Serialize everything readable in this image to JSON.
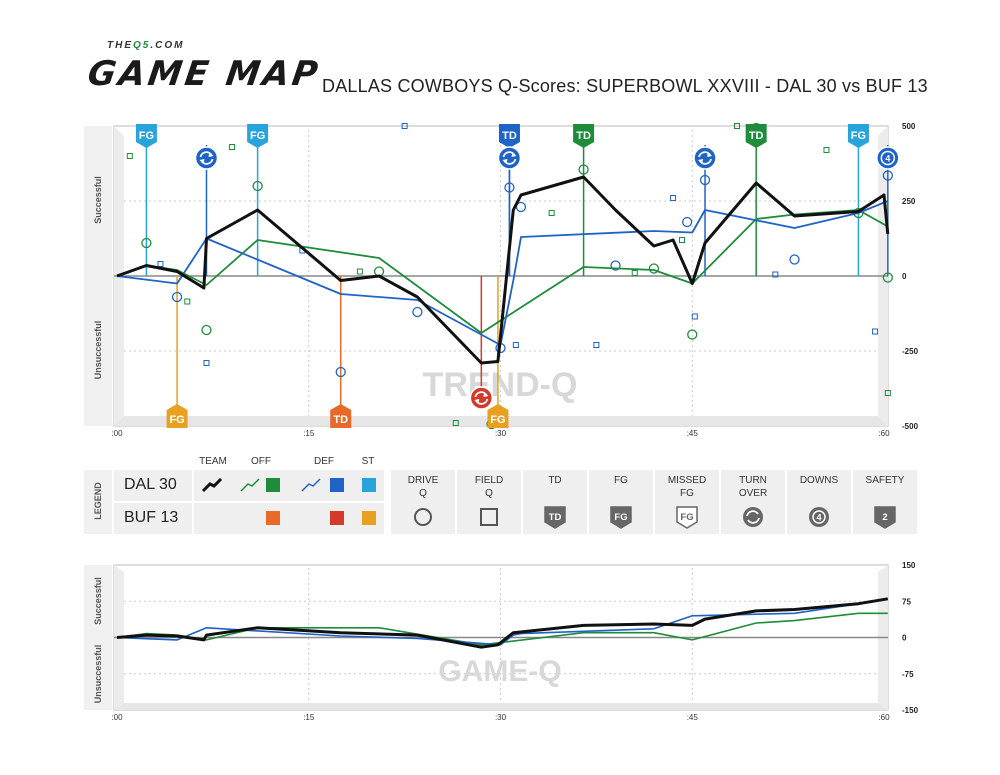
{
  "header": {
    "site_prefix": "THE",
    "site_brand": "Q5",
    "site_suffix": ".COM",
    "brand": "GAME MAP",
    "title": "DALLAS COWBOYS Q-Scores: SUPERBOWL XXVIII - DAL 30 vs BUF 13"
  },
  "colors": {
    "team": "#111111",
    "dal_off": "#1e8c3a",
    "dal_def": "#1f63c6",
    "dal_st": "#29a3dc",
    "buf_off": "#e86a2a",
    "buf_def": "#d43a2a",
    "buf_st": "#e8a020"
  },
  "trend": {
    "watermark": "TREND-Q",
    "side_labels": {
      "top": "Successful",
      "bottom": "Unsuccessful"
    },
    "yticks": [
      "500",
      "250",
      "0",
      "-250",
      "-500"
    ],
    "xticks": [
      ":00",
      ":15",
      ":30",
      ":45",
      ":60"
    ]
  },
  "game": {
    "watermark": "GAME-Q",
    "side_labels": {
      "top": "Successful",
      "bottom": "Unsuccessful"
    },
    "yticks": [
      "150",
      "75",
      "0",
      "-75",
      "-150"
    ],
    "xticks": [
      ":00",
      ":15",
      ":30",
      ":45",
      ":60"
    ]
  },
  "legend": {
    "side_label": "LEGEND",
    "headers": {
      "team": "TEAM",
      "off": "OFF",
      "def": "DEF",
      "st": "ST"
    },
    "teams": [
      "DAL 30",
      "BUF 13"
    ],
    "symbols": [
      {
        "line1": "DRIVE",
        "line2": "Q",
        "icon": "circle-icon"
      },
      {
        "line1": "FIELD",
        "line2": "Q",
        "icon": "square-icon"
      },
      {
        "line1": "TD",
        "line2": "",
        "icon": "td-badge-icon",
        "badge": "TD"
      },
      {
        "line1": "FG",
        "line2": "",
        "icon": "fg-badge-icon",
        "badge": "FG"
      },
      {
        "line1": "MISSED",
        "line2": "FG",
        "icon": "missed-fg-badge-icon",
        "badge": "FG"
      },
      {
        "line1": "TURN",
        "line2": "OVER",
        "icon": "turnover-icon"
      },
      {
        "line1": "DOWNS",
        "line2": "",
        "icon": "downs-icon",
        "badge": "4"
      },
      {
        "line1": "SAFETY",
        "line2": "",
        "icon": "safety-badge-icon",
        "badge": "2"
      }
    ]
  },
  "chart_data": [
    {
      "type": "line",
      "title": "TREND-Q",
      "x_label_ticks": [
        ":00",
        ":15",
        ":30",
        ":45",
        ":60"
      ],
      "xlim": [
        0,
        60
      ],
      "ylim": [
        -500,
        500
      ],
      "series": [
        {
          "name": "TEAM",
          "color": "#111111",
          "points": [
            [
              0,
              0
            ],
            [
              2.3,
              35
            ],
            [
              4.7,
              15
            ],
            [
              6.8,
              -40
            ],
            [
              7,
              125
            ],
            [
              11,
              220
            ],
            [
              17.5,
              -15
            ],
            [
              20.5,
              0
            ],
            [
              23.5,
              -70
            ],
            [
              28.5,
              -290
            ],
            [
              29.8,
              -285
            ],
            [
              31,
              220
            ],
            [
              31.6,
              270
            ],
            [
              36.5,
              330
            ],
            [
              39,
              220
            ],
            [
              42,
              100
            ],
            [
              43.5,
              120
            ],
            [
              45,
              -25
            ],
            [
              46,
              110
            ],
            [
              50,
              310
            ],
            [
              53,
              200
            ],
            [
              58,
              215
            ],
            [
              60,
              270
            ],
            [
              60.3,
              140
            ]
          ]
        },
        {
          "name": "OFF",
          "color": "#1e8c3a",
          "points": [
            [
              0,
              0
            ],
            [
              2.3,
              35
            ],
            [
              4.7,
              20
            ],
            [
              7,
              -30
            ],
            [
              11,
              120
            ],
            [
              20.5,
              60
            ],
            [
              28.5,
              -190
            ],
            [
              36.5,
              30
            ],
            [
              42,
              20
            ],
            [
              45,
              -25
            ],
            [
              50,
              190
            ],
            [
              53,
              205
            ],
            [
              58,
              220
            ],
            [
              60.3,
              165
            ]
          ]
        },
        {
          "name": "DEF",
          "color": "#1f63c6",
          "points": [
            [
              0,
              0
            ],
            [
              4.7,
              -25
            ],
            [
              7,
              125
            ],
            [
              17.5,
              -60
            ],
            [
              23.5,
              -80
            ],
            [
              30,
              -230
            ],
            [
              31,
              -15
            ],
            [
              31.6,
              130
            ],
            [
              42,
              150
            ],
            [
              45,
              145
            ],
            [
              46,
              220
            ],
            [
              53,
              160
            ],
            [
              58,
              210
            ],
            [
              60.3,
              250
            ]
          ]
        }
      ],
      "drive_points": [
        {
          "x": 2.3,
          "y": 110,
          "team": "off"
        },
        {
          "x": 4.7,
          "y": -70,
          "team": "def"
        },
        {
          "x": 7,
          "y": -180,
          "team": "off"
        },
        {
          "x": 11,
          "y": 300,
          "team": "off"
        },
        {
          "x": 17.5,
          "y": -320,
          "team": "def"
        },
        {
          "x": 20.5,
          "y": 15,
          "team": "off"
        },
        {
          "x": 23.5,
          "y": -120,
          "team": "def"
        },
        {
          "x": 29.3,
          "y": -500,
          "team": "off"
        },
        {
          "x": 30,
          "y": -240,
          "team": "def"
        },
        {
          "x": 30.7,
          "y": 295,
          "team": "def"
        },
        {
          "x": 31.6,
          "y": 230,
          "team": "def"
        },
        {
          "x": 36.5,
          "y": 355,
          "team": "off"
        },
        {
          "x": 39,
          "y": 35,
          "team": "def"
        },
        {
          "x": 42,
          "y": 25,
          "team": "off"
        },
        {
          "x": 44.6,
          "y": 180,
          "team": "def"
        },
        {
          "x": 45,
          "y": -195,
          "team": "off"
        },
        {
          "x": 46,
          "y": 320,
          "team": "def"
        },
        {
          "x": 50,
          "y": 505,
          "team": "off"
        },
        {
          "x": 53,
          "y": 55,
          "team": "def"
        },
        {
          "x": 58,
          "y": 210,
          "team": "off"
        },
        {
          "x": 60.3,
          "y": 335,
          "team": "def"
        },
        {
          "x": 60.3,
          "y": -5,
          "team": "off"
        }
      ],
      "field_points": [
        {
          "x": 1,
          "y": 400,
          "team": "off"
        },
        {
          "x": 3.4,
          "y": 40,
          "team": "def"
        },
        {
          "x": 5.5,
          "y": -85,
          "team": "off"
        },
        {
          "x": 7,
          "y": -290,
          "team": "def"
        },
        {
          "x": 9,
          "y": 430,
          "team": "off"
        },
        {
          "x": 14.5,
          "y": 85,
          "team": "def"
        },
        {
          "x": 19,
          "y": 15,
          "team": "off"
        },
        {
          "x": 22.5,
          "y": 500,
          "team": "def"
        },
        {
          "x": 26.5,
          "y": -500,
          "team": "off"
        },
        {
          "x": 31.2,
          "y": -230,
          "team": "def"
        },
        {
          "x": 34,
          "y": 210,
          "team": "off"
        },
        {
          "x": 37.5,
          "y": -230,
          "team": "def"
        },
        {
          "x": 40.5,
          "y": 10,
          "team": "off"
        },
        {
          "x": 43.5,
          "y": 260,
          "team": "def"
        },
        {
          "x": 44.2,
          "y": 120,
          "team": "off"
        },
        {
          "x": 45.2,
          "y": -135,
          "team": "def"
        },
        {
          "x": 48.5,
          "y": 500,
          "team": "off"
        },
        {
          "x": 51.5,
          "y": 5,
          "team": "def"
        },
        {
          "x": 55.5,
          "y": 420,
          "team": "off"
        },
        {
          "x": 59.3,
          "y": -185,
          "team": "def"
        },
        {
          "x": 60.3,
          "y": -390,
          "team": "off"
        }
      ],
      "events": [
        {
          "x": 2.3,
          "type": "FG",
          "team": "DAL",
          "side": "top",
          "color": "#29a3dc"
        },
        {
          "x": 7,
          "type": "TURNOVER",
          "team": "DAL",
          "side": "top",
          "color": "#1f63c6"
        },
        {
          "x": 11,
          "type": "FG",
          "team": "DAL",
          "side": "top",
          "color": "#29a3dc"
        },
        {
          "x": 30.7,
          "type": "TD",
          "team": "DAL",
          "side": "top",
          "color": "#1f63c6"
        },
        {
          "x": 30.7,
          "type": "TURNOVER",
          "team": "DAL",
          "side": "top",
          "color": "#1f63c6"
        },
        {
          "x": 36.5,
          "type": "TD",
          "team": "DAL",
          "side": "top",
          "color": "#1e8c3a"
        },
        {
          "x": 46,
          "type": "TURNOVER",
          "team": "DAL",
          "side": "top",
          "color": "#1f63c6"
        },
        {
          "x": 50,
          "type": "TD",
          "team": "DAL",
          "side": "top",
          "color": "#1e8c3a"
        },
        {
          "x": 58,
          "type": "FG",
          "team": "DAL",
          "side": "top",
          "color": "#29a3dc"
        },
        {
          "x": 60.3,
          "type": "DOWNS",
          "team": "DAL",
          "side": "top",
          "color": "#1f63c6",
          "badge": "4"
        },
        {
          "x": 4.7,
          "type": "FG",
          "team": "BUF",
          "side": "bottom",
          "color": "#e8a020"
        },
        {
          "x": 17.5,
          "type": "TD",
          "team": "BUF",
          "side": "bottom",
          "color": "#e86a2a"
        },
        {
          "x": 28.5,
          "type": "TURNOVER",
          "team": "BUF",
          "side": "bottom",
          "color": "#d43a2a"
        },
        {
          "x": 29.8,
          "type": "FG",
          "team": "BUF",
          "side": "bottom",
          "color": "#e8a020"
        }
      ]
    },
    {
      "type": "line",
      "title": "GAME-Q",
      "x_label_ticks": [
        ":00",
        ":15",
        ":30",
        ":45",
        ":60"
      ],
      "xlim": [
        0,
        60
      ],
      "ylim": [
        -150,
        150
      ],
      "series": [
        {
          "name": "TEAM",
          "color": "#111111",
          "points": [
            [
              0,
              0
            ],
            [
              2.3,
              5
            ],
            [
              4.7,
              3
            ],
            [
              6.8,
              -5
            ],
            [
              7,
              5
            ],
            [
              11,
              20
            ],
            [
              17.5,
              10
            ],
            [
              23.5,
              5
            ],
            [
              28.5,
              -20
            ],
            [
              29.8,
              -15
            ],
            [
              31,
              10
            ],
            [
              36.5,
              25
            ],
            [
              42,
              28
            ],
            [
              45,
              25
            ],
            [
              46,
              38
            ],
            [
              50,
              55
            ],
            [
              53,
              58
            ],
            [
              58,
              70
            ],
            [
              60.3,
              80
            ]
          ]
        },
        {
          "name": "OFF",
          "color": "#1e8c3a",
          "points": [
            [
              0,
              0
            ],
            [
              2.3,
              8
            ],
            [
              4.7,
              5
            ],
            [
              7,
              -5
            ],
            [
              11,
              20
            ],
            [
              20.5,
              20
            ],
            [
              28.5,
              -15
            ],
            [
              36.5,
              10
            ],
            [
              42,
              10
            ],
            [
              45,
              -5
            ],
            [
              50,
              30
            ],
            [
              53,
              35
            ],
            [
              58,
              50
            ],
            [
              60.3,
              50
            ]
          ]
        },
        {
          "name": "DEF",
          "color": "#1f63c6",
          "points": [
            [
              0,
              0
            ],
            [
              4.7,
              -5
            ],
            [
              7,
              20
            ],
            [
              17.5,
              3
            ],
            [
              23.5,
              -2
            ],
            [
              30,
              -15
            ],
            [
              31,
              5
            ],
            [
              31.6,
              8
            ],
            [
              42,
              18
            ],
            [
              45,
              45
            ],
            [
              53,
              50
            ],
            [
              58,
              70
            ],
            [
              60.3,
              80
            ]
          ]
        }
      ]
    }
  ]
}
